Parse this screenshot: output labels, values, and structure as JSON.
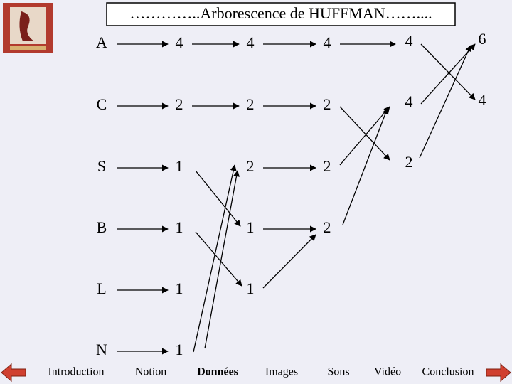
{
  "header": {
    "title": "…………..Arborescence de HUFFMAN……...."
  },
  "columns": [
    [
      "A",
      "C",
      "S",
      "B",
      "L",
      "N"
    ],
    [
      4,
      2,
      1,
      1,
      1,
      1
    ],
    [
      4,
      2,
      2,
      1,
      1
    ],
    [
      4,
      2,
      2,
      2
    ],
    [
      4,
      4,
      2
    ],
    [
      6,
      4
    ]
  ],
  "nav": {
    "items": [
      "Introduction",
      "Notion",
      "Données",
      "Images",
      "Sons",
      "Vidéo",
      "Conclusion"
    ],
    "active": 2
  }
}
